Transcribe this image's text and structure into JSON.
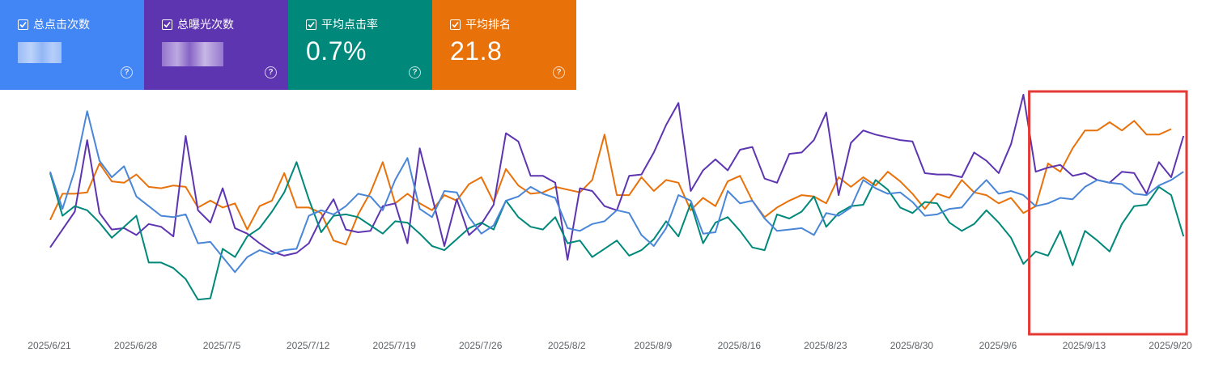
{
  "cards": [
    {
      "label": "总点击次数",
      "value": "",
      "color": "#4285f4",
      "checked": true,
      "blurred": true
    },
    {
      "label": "总曝光次数",
      "value": "",
      "color": "#5e35b1",
      "checked": true,
      "blurred": true
    },
    {
      "label": "平均点击率",
      "value": "0.7%",
      "color": "#00897b",
      "checked": true
    },
    {
      "label": "平均排名",
      "value": "21.8",
      "color": "#e8710a",
      "checked": true
    }
  ],
  "chart_data": {
    "type": "line",
    "x_tick_labels": [
      "2025/6/21",
      "2025/6/28",
      "2025/7/5",
      "2025/7/12",
      "2025/7/19",
      "2025/7/26",
      "2025/8/2",
      "2025/8/9",
      "2025/8/16",
      "2025/8/23",
      "2025/8/30",
      "2025/9/6",
      "2025/9/13",
      "2025/9/20"
    ],
    "grid": false,
    "highlight_box": {
      "color": "#e53935",
      "from_day": 80,
      "to_day": 91
    },
    "series": [
      {
        "color": "#e8710a",
        "values": [
          79,
          98,
          98,
          99,
          120,
          107,
          106,
          112,
          103,
          102,
          104,
          103,
          88,
          93,
          88,
          91,
          72,
          89,
          93,
          113,
          88,
          88,
          84,
          64,
          61,
          83,
          99,
          121,
          91,
          98,
          91,
          86,
          97,
          93,
          105,
          110,
          92,
          116,
          104,
          98,
          99,
          103,
          101,
          99,
          108,
          141,
          97,
          97,
          110,
          100,
          108,
          106,
          86,
          95,
          89,
          107,
          111,
          93,
          81,
          88,
          93,
          97,
          96,
          91,
          110,
          103,
          110,
          104,
          114,
          107,
          98,
          87,
          98,
          95,
          108,
          99,
          97,
          91,
          95,
          84,
          89,
          120,
          114,
          131,
          144,
          144,
          150,
          144,
          151,
          141,
          141,
          145
        ]
      },
      {
        "color": "#5e35b1",
        "values": [
          59,
          72,
          85,
          137,
          84,
          72,
          73,
          68,
          76,
          74,
          67,
          140,
          86,
          77,
          102,
          73,
          69,
          62,
          56,
          53,
          55,
          62,
          80,
          94,
          72,
          70,
          71,
          89,
          91,
          62,
          131,
          96,
          60,
          94,
          68,
          76,
          90,
          142,
          136,
          111,
          111,
          106,
          50,
          102,
          100,
          89,
          86,
          111,
          112,
          128,
          148,
          164,
          100,
          115,
          123,
          115,
          130,
          132,
          109,
          106,
          127,
          128,
          137,
          157,
          97,
          135,
          144,
          141,
          139,
          137,
          136,
          113,
          112,
          112,
          110,
          128,
          122,
          113,
          134,
          170,
          114,
          117,
          119,
          111,
          113,
          108,
          106,
          114,
          113,
          98,
          121,
          110,
          140
        ]
      },
      {
        "color": "#00897b",
        "values": [
          113,
          82,
          89,
          86,
          77,
          66,
          74,
          82,
          48,
          48,
          44,
          36,
          21,
          22,
          58,
          52,
          67,
          73,
          85,
          99,
          121,
          94,
          70,
          82,
          83,
          81,
          75,
          69,
          78,
          77,
          69,
          60,
          57,
          65,
          73,
          77,
          72,
          93,
          81,
          74,
          72,
          81,
          62,
          64,
          52,
          58,
          64,
          53,
          57,
          65,
          78,
          67,
          91,
          62,
          77,
          81,
          71,
          59,
          57,
          83,
          80,
          85,
          96,
          74,
          84,
          89,
          90,
          108,
          101,
          88,
          84,
          92,
          91,
          77,
          71,
          76,
          86,
          77,
          66,
          47,
          56,
          53,
          71,
          46,
          71,
          64,
          56,
          76,
          89,
          90,
          103,
          97,
          67
        ]
      },
      {
        "color": "#4a86d8",
        "values": [
          114,
          87,
          115,
          158,
          122,
          110,
          118,
          96,
          89,
          82,
          81,
          83,
          62,
          63,
          52,
          41,
          52,
          57,
          54,
          57,
          58,
          82,
          86,
          83,
          89,
          98,
          96,
          86,
          108,
          124,
          87,
          81,
          100,
          99,
          81,
          69,
          75,
          93,
          96,
          103,
          98,
          95,
          73,
          71,
          76,
          78,
          86,
          84,
          68,
          60,
          73,
          97,
          93,
          69,
          70,
          100,
          91,
          93,
          80,
          71,
          72,
          73,
          68,
          84,
          82,
          88,
          108,
          102,
          98,
          99,
          92,
          82,
          83,
          87,
          88,
          99,
          108,
          98,
          100,
          97,
          89,
          91,
          95,
          94,
          103,
          108,
          106,
          105,
          98,
          97,
          104,
          108,
          114
        ]
      }
    ]
  }
}
